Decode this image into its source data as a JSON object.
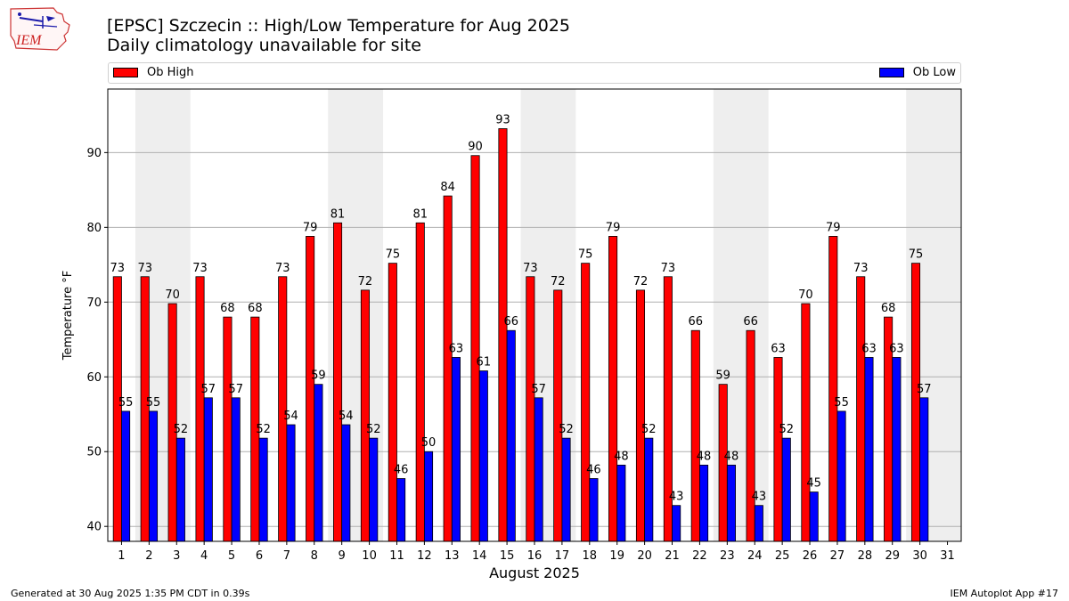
{
  "header": {
    "logo_text": "IEM",
    "title": "[EPSC] Szczecin :: High/Low Temperature for Aug 2025",
    "subtitle": "Daily climatology unavailable for site"
  },
  "footer": {
    "generated": "Generated at 30 Aug 2025 1:35 PM CDT in 0.39s",
    "app": "IEM Autoplot App #17"
  },
  "colors": {
    "high": "#ff0000",
    "low": "#0000ff",
    "weekend_band": "#eeeeee",
    "grid": "#b0b0b0"
  },
  "chart_data": {
    "type": "bar",
    "xlabel": "August 2025",
    "ylabel": "Temperature °F",
    "ylim": [
      38,
      98.5
    ],
    "xlim": [
      0.5,
      31.5
    ],
    "yticks": [
      40,
      50,
      60,
      70,
      80,
      90
    ],
    "grid": "horizontal",
    "legend": "top (Ob High left, Ob Low right)",
    "categories": [
      "1",
      "2",
      "3",
      "4",
      "5",
      "6",
      "7",
      "8",
      "9",
      "10",
      "11",
      "12",
      "13",
      "14",
      "15",
      "16",
      "17",
      "18",
      "19",
      "20",
      "21",
      "22",
      "23",
      "24",
      "25",
      "26",
      "27",
      "28",
      "29",
      "30",
      "31"
    ],
    "weekend_bands": [
      [
        1.5,
        3.5
      ],
      [
        8.5,
        10.5
      ],
      [
        15.5,
        17.5
      ],
      [
        22.5,
        24.5
      ],
      [
        29.5,
        31.5
      ]
    ],
    "series": [
      {
        "name": "Ob High",
        "color": "#ff0000",
        "values": [
          73.4,
          73.4,
          69.8,
          73.4,
          68.0,
          68.0,
          73.4,
          78.8,
          80.6,
          71.6,
          75.2,
          80.6,
          84.2,
          89.6,
          93.2,
          73.4,
          71.6,
          75.2,
          78.8,
          71.6,
          73.4,
          66.2,
          59.0,
          66.2,
          62.6,
          69.8,
          78.8,
          73.4,
          68.0,
          75.2,
          null
        ],
        "labels": [
          "73",
          "73",
          "70",
          "73",
          "68",
          "68",
          "73",
          "79",
          "81",
          "72",
          "75",
          "81",
          "84",
          "90",
          "93",
          "73",
          "72",
          "75",
          "79",
          "72",
          "73",
          "66",
          "59",
          "66",
          "63",
          "70",
          "79",
          "73",
          "68",
          "75",
          ""
        ]
      },
      {
        "name": "Ob Low",
        "color": "#0000ff",
        "values": [
          55.4,
          55.4,
          51.8,
          57.2,
          57.2,
          51.8,
          53.6,
          59.0,
          53.6,
          51.8,
          46.4,
          50.0,
          62.6,
          60.8,
          66.2,
          57.2,
          51.8,
          46.4,
          48.2,
          51.8,
          42.8,
          48.2,
          48.2,
          42.8,
          51.8,
          44.6,
          55.4,
          62.6,
          62.6,
          57.2,
          null
        ],
        "labels": [
          "55",
          "55",
          "52",
          "57",
          "57",
          "52",
          "54",
          "59",
          "54",
          "52",
          "46",
          "50",
          "63",
          "61",
          "66",
          "57",
          "52",
          "46",
          "48",
          "52",
          "43",
          "48",
          "48",
          "43",
          "52",
          "45",
          "55",
          "63",
          "63",
          "57",
          ""
        ]
      }
    ]
  }
}
